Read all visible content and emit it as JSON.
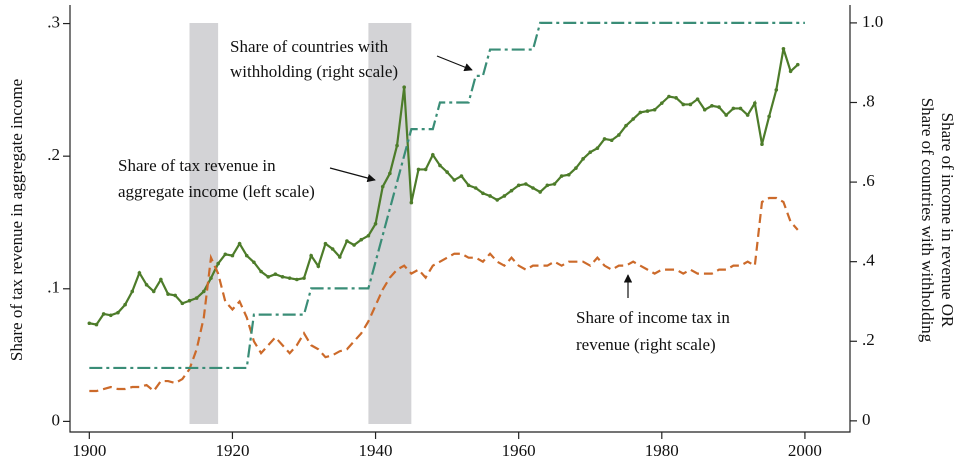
{
  "chart_data": {
    "type": "line",
    "y_label": "Share of tax revenue in aggregate income",
    "y2_label": [
      "Share of income in revenue OR",
      "Share of countries with withholding"
    ],
    "xlim": [
      1897.3,
      2006.3
    ],
    "xticks": [
      1900,
      1920,
      1940,
      1960,
      1980,
      2000
    ],
    "ylim": [
      -0.008,
      0.314
    ],
    "yticks": [
      0,
      {
        "value": 0.1,
        "label": ".1"
      },
      {
        "value": 0.2,
        "label": ".2"
      },
      {
        "value": 0.3,
        "label": ".3"
      }
    ],
    "y2lim": [
      -0.028,
      1.045
    ],
    "y2ticks": [
      0,
      {
        "value": 0.2,
        "label": ".2"
      },
      {
        "value": 0.4,
        "label": ".4"
      },
      {
        "value": 0.6,
        "label": ".6"
      },
      {
        "value": 0.8,
        "label": ".8"
      },
      {
        "value": 1.0,
        "label": "1.0"
      }
    ],
    "grid": false,
    "shaded": [
      [
        1914,
        1918
      ],
      [
        1939,
        1945
      ]
    ],
    "shaded_color": "#d3d3d6",
    "x": [
      1900,
      1901,
      1902,
      1903,
      1904,
      1905,
      1906,
      1907,
      1908,
      1909,
      1910,
      1911,
      1912,
      1913,
      1914,
      1915,
      1916,
      1917,
      1918,
      1919,
      1920,
      1921,
      1922,
      1923,
      1924,
      1925,
      1926,
      1927,
      1928,
      1929,
      1930,
      1931,
      1932,
      1933,
      1934,
      1935,
      1936,
      1937,
      1938,
      1939,
      1940,
      1941,
      1942,
      1943,
      1944,
      1945,
      1946,
      1947,
      1948,
      1949,
      1950,
      1951,
      1952,
      1953,
      1954,
      1955,
      1956,
      1957,
      1958,
      1959,
      1960,
      1961,
      1962,
      1963,
      1964,
      1965,
      1966,
      1967,
      1968,
      1969,
      1970,
      1971,
      1972,
      1973,
      1974,
      1975,
      1976,
      1977,
      1978,
      1979,
      1980,
      1981,
      1982,
      1983,
      1984,
      1985,
      1986,
      1987,
      1988,
      1989,
      1990,
      1991,
      1992,
      1993,
      1994,
      1995,
      1996,
      1997,
      1998,
      1999
    ],
    "series": [
      {
        "color": "#4d7c2a",
        "style": "solid",
        "markers": true,
        "values": [
          0.074,
          0.073,
          0.081,
          0.08,
          0.082,
          0.088,
          0.098,
          0.112,
          0.103,
          0.098,
          0.107,
          0.096,
          0.095,
          0.089,
          0.091,
          0.093,
          0.098,
          0.108,
          0.119,
          0.126,
          0.125,
          0.134,
          0.125,
          0.12,
          0.113,
          0.109,
          0.111,
          0.109,
          0.108,
          0.107,
          0.108,
          0.125,
          0.117,
          0.134,
          0.13,
          0.124,
          0.136,
          0.133,
          0.137,
          0.14,
          0.149,
          0.177,
          0.187,
          0.208,
          0.252,
          0.165,
          0.19,
          0.19,
          0.201,
          0.193,
          0.188,
          0.182,
          0.185,
          0.178,
          0.176,
          0.172,
          0.17,
          0.167,
          0.17,
          0.174,
          0.178,
          0.179,
          0.176,
          0.173,
          0.178,
          0.179,
          0.185,
          0.186,
          0.191,
          0.198,
          0.203,
          0.206,
          0.213,
          0.212,
          0.216,
          0.223,
          0.228,
          0.233,
          0.234,
          0.235,
          0.24,
          0.245,
          0.244,
          0.239,
          0.239,
          0.243,
          0.235,
          0.238,
          0.237,
          0.231,
          0.236,
          0.236,
          0.231,
          0.24,
          0.209,
          0.23,
          0.25,
          0.281,
          0.264,
          0.269
        ]
      },
      {
        "color": "#cc6a2a",
        "style": "dash",
        "axis": "y2",
        "values": [
          0.075,
          0.075,
          0.08,
          0.085,
          0.08,
          0.08,
          0.085,
          0.085,
          0.09,
          0.075,
          0.1,
          0.1,
          0.095,
          0.105,
          0.13,
          0.18,
          0.26,
          0.41,
          0.37,
          0.3,
          0.28,
          0.3,
          0.26,
          0.2,
          0.17,
          0.19,
          0.21,
          0.19,
          0.17,
          0.19,
          0.22,
          0.19,
          0.18,
          0.16,
          0.165,
          0.175,
          0.18,
          0.2,
          0.22,
          0.25,
          0.29,
          0.33,
          0.36,
          0.38,
          0.39,
          0.37,
          0.38,
          0.36,
          0.39,
          0.4,
          0.41,
          0.42,
          0.42,
          0.41,
          0.41,
          0.4,
          0.42,
          0.4,
          0.39,
          0.41,
          0.39,
          0.38,
          0.39,
          0.39,
          0.39,
          0.4,
          0.39,
          0.4,
          0.4,
          0.4,
          0.39,
          0.41,
          0.39,
          0.38,
          0.39,
          0.39,
          0.4,
          0.39,
          0.38,
          0.37,
          0.38,
          0.38,
          0.38,
          0.37,
          0.38,
          0.37,
          0.37,
          0.37,
          0.38,
          0.38,
          0.39,
          0.39,
          0.4,
          0.39,
          0.55,
          0.56,
          0.56,
          0.55,
          0.5,
          0.48
        ]
      },
      {
        "color": "#3a8d77",
        "style": "dashdot",
        "axis": "y2",
        "x": [
          1900,
          1922,
          1923,
          1930,
          1931,
          1939,
          1945,
          1948,
          1949,
          1953,
          1954,
          1955,
          1956,
          1962,
          1963,
          2000
        ],
        "values": [
          0.133,
          0.133,
          0.267,
          0.267,
          0.333,
          0.333,
          0.733,
          0.733,
          0.8,
          0.8,
          0.867,
          0.867,
          0.933,
          0.933,
          1.0,
          1.0
        ]
      }
    ],
    "annotations": [
      [
        "Share of countries with",
        "withholding (right scale)"
      ],
      [
        "Share of tax revenue in",
        "aggregate income (left scale)"
      ],
      [
        "Share of income tax in",
        "revenue (right scale)"
      ]
    ]
  }
}
